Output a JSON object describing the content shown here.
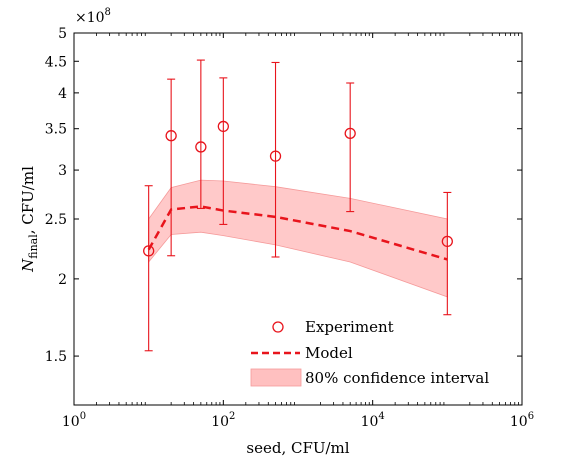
{
  "chart_data": {
    "type": "line",
    "xlabel": "seed, CFU/ml",
    "ylabel_main": "N",
    "ylabel_sub": "final",
    "ylabel_rest": ", CFU/ml",
    "x_scale": "log",
    "y_scale": "log",
    "xlim": [
      1,
      1000000
    ],
    "ylim": [
      125000000,
      500000000
    ],
    "y_exponent_label": "×10",
    "y_exponent": "8",
    "x_ticks": [
      {
        "value": 1,
        "base": "10",
        "exp": "0"
      },
      {
        "value": 100,
        "base": "10",
        "exp": "2"
      },
      {
        "value": 10000,
        "base": "10",
        "exp": "4"
      },
      {
        "value": 1000000,
        "base": "10",
        "exp": "6"
      }
    ],
    "y_ticks": [
      {
        "value": 150000000,
        "label": "1.5"
      },
      {
        "value": 200000000,
        "label": "2"
      },
      {
        "value": 250000000,
        "label": "2.5"
      },
      {
        "value": 300000000,
        "label": "3"
      },
      {
        "value": 350000000,
        "label": "3.5"
      },
      {
        "value": 400000000,
        "label": "4"
      },
      {
        "value": 450000000,
        "label": "4.5"
      },
      {
        "value": 500000000,
        "label": "5"
      }
    ],
    "legend_position": "bottom-right",
    "grid": false,
    "series": [
      {
        "name": "Experiment",
        "kind": "scatter-errorbar",
        "color": "#e8141c",
        "points": [
          {
            "x": 10,
            "y": 222000000,
            "lo": 153000000,
            "hi": 283000000
          },
          {
            "x": 20,
            "y": 341000000,
            "lo": 218000000,
            "hi": 421000000
          },
          {
            "x": 50,
            "y": 327000000,
            "lo": 260000000,
            "hi": 452000000
          },
          {
            "x": 100,
            "y": 353000000,
            "lo": 245000000,
            "hi": 423000000
          },
          {
            "x": 500,
            "y": 316000000,
            "lo": 217000000,
            "hi": 448000000
          },
          {
            "x": 5000,
            "y": 344000000,
            "lo": 257000000,
            "hi": 415000000
          },
          {
            "x": 100000,
            "y": 230000000,
            "lo": 175000000,
            "hi": 276000000
          }
        ]
      },
      {
        "name": "Model",
        "kind": "line",
        "color": "#e8141c",
        "x": [
          10,
          20,
          50,
          100,
          500,
          5000,
          100000
        ],
        "y": [
          223000000,
          259000000,
          262000000,
          258000000,
          252000000,
          239000000,
          215000000
        ]
      },
      {
        "name": "80% confidence interval",
        "kind": "band",
        "color": "#ffc0c0",
        "x": [
          10,
          20,
          50,
          100,
          500,
          5000,
          100000
        ],
        "lower": [
          213000000,
          236000000,
          238000000,
          235000000,
          227000000,
          213000000,
          187000000
        ],
        "upper": [
          250000000,
          281000000,
          289000000,
          288000000,
          282000000,
          270000000,
          250000000
        ]
      }
    ]
  }
}
